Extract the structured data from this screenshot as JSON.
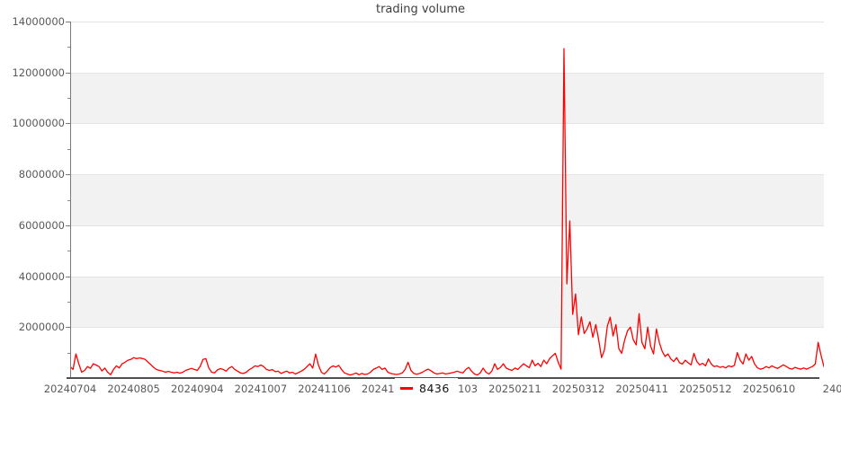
{
  "chart": {
    "title": "trading volume",
    "legend": {
      "series_label": "8436",
      "swatch_color": "#ff0000"
    },
    "colors": {
      "line": "#ff0000",
      "band_gray": "#f2f2f2",
      "band_white": "#ffffff",
      "gridline": "#e4e4e4",
      "axis_line": "#4f4f4f",
      "spine": "#7a7a7a",
      "tick_label": "#595959",
      "title_text": "#3d3d3d",
      "legend_text": "#111111"
    }
  },
  "chart_data": {
    "type": "line",
    "title": "trading volume",
    "xlabel": "",
    "ylabel": "",
    "ylim": [
      0,
      14000000
    ],
    "y_major_tick_step": 2000000,
    "y_minor_tick_step": 1000000,
    "y_tick_labels": [
      "14000000",
      "12000000",
      "10000000",
      "8000000",
      "6000000",
      "4000000",
      "2000000"
    ],
    "x_tick_labels": [
      "20240704",
      "20240805",
      "20240904",
      "20241007",
      "20241106",
      "20241206",
      "20250103",
      "20250211",
      "20250312",
      "20250411",
      "20250512",
      "20250610",
      "240"
    ],
    "x_tick_every_n_points": 22,
    "grid": "horizontal gridlines with alternating gray bands between 2M steps",
    "legend_position": "bottom-center over x-axis labels",
    "series": [
      {
        "name": "8436",
        "color": "#ff0000",
        "values": [
          450000,
          340000,
          950000,
          560000,
          230000,
          300000,
          450000,
          380000,
          560000,
          510000,
          450000,
          280000,
          390000,
          230000,
          130000,
          340000,
          480000,
          400000,
          560000,
          620000,
          700000,
          730000,
          800000,
          760000,
          790000,
          770000,
          730000,
          620000,
          520000,
          410000,
          330000,
          300000,
          270000,
          230000,
          260000,
          230000,
          200000,
          230000,
          190000,
          230000,
          300000,
          340000,
          380000,
          340000,
          300000,
          450000,
          730000,
          760000,
          400000,
          230000,
          200000,
          320000,
          370000,
          340000,
          270000,
          390000,
          450000,
          340000,
          270000,
          200000,
          180000,
          230000,
          330000,
          390000,
          480000,
          450000,
          510000,
          450000,
          340000,
          300000,
          330000,
          250000,
          270000,
          180000,
          230000,
          270000,
          200000,
          230000,
          160000,
          210000,
          270000,
          340000,
          450000,
          560000,
          390000,
          940000,
          500000,
          230000,
          160000,
          270000,
          410000,
          480000,
          430000,
          500000,
          330000,
          200000,
          160000,
          120000,
          150000,
          200000,
          130000,
          180000,
          140000,
          160000,
          230000,
          340000,
          390000,
          450000,
          340000,
          390000,
          230000,
          180000,
          160000,
          140000,
          160000,
          200000,
          340000,
          620000,
          300000,
          180000,
          150000,
          180000,
          230000,
          300000,
          350000,
          280000,
          200000,
          160000,
          180000,
          200000,
          160000,
          180000,
          200000,
          230000,
          270000,
          230000,
          200000,
          340000,
          420000,
          270000,
          160000,
          120000,
          200000,
          390000,
          230000,
          160000,
          270000,
          560000,
          340000,
          420000,
          560000,
          390000,
          340000,
          300000,
          390000,
          340000,
          450000,
          560000,
          480000,
          410000,
          700000,
          480000,
          580000,
          450000,
          700000,
          560000,
          760000,
          870000,
          970000,
          620000,
          350000,
          12940000,
          3700000,
          6170000,
          2500000,
          3300000,
          1700000,
          2400000,
          1750000,
          1930000,
          2210000,
          1600000,
          2100000,
          1500000,
          800000,
          1100000,
          2040000,
          2390000,
          1650000,
          2100000,
          1150000,
          970000,
          1500000,
          1860000,
          2000000,
          1500000,
          1300000,
          2530000,
          1400000,
          1150000,
          2000000,
          1250000,
          950000,
          1930000,
          1400000,
          1050000,
          850000,
          950000,
          750000,
          650000,
          800000,
          600000,
          550000,
          700000,
          600000,
          520000,
          970000,
          650000,
          520000,
          580000,
          480000,
          750000,
          550000,
          450000,
          480000,
          420000,
          450000,
          400000,
          480000,
          440000,
          500000,
          1000000,
          700000,
          550000,
          950000,
          700000,
          850000,
          550000,
          400000,
          350000,
          380000,
          450000,
          400000,
          480000,
          420000,
          380000,
          450000,
          520000,
          450000,
          380000,
          350000,
          420000,
          380000,
          350000,
          400000,
          350000,
          400000,
          450000,
          550000,
          1400000,
          900000,
          450000
        ]
      }
    ]
  }
}
